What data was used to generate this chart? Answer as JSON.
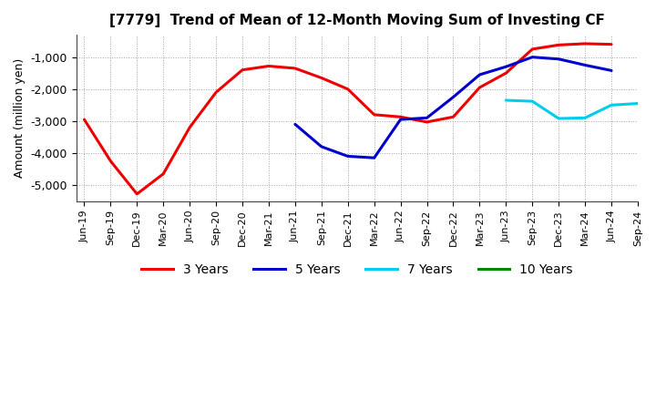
{
  "title": "[7779]  Trend of Mean of 12-Month Moving Sum of Investing CF",
  "ylabel": "Amount (million yen)",
  "background_color": "#ffffff",
  "grid_color": "#999999",
  "ylim": [
    -5500,
    -300
  ],
  "yticks": [
    -5000,
    -4000,
    -3000,
    -2000,
    -1000
  ],
  "x_labels": [
    "Jun-19",
    "Sep-19",
    "Dec-19",
    "Mar-20",
    "Jun-20",
    "Sep-20",
    "Dec-20",
    "Mar-21",
    "Jun-21",
    "Sep-21",
    "Dec-21",
    "Mar-22",
    "Jun-22",
    "Sep-22",
    "Dec-22",
    "Mar-23",
    "Jun-23",
    "Sep-23",
    "Dec-23",
    "Mar-24",
    "Jun-24",
    "Sep-24"
  ],
  "series_3yr": {
    "color": "#ee0000",
    "x": [
      0,
      1,
      2,
      3,
      4,
      5,
      6,
      7,
      8,
      9,
      10,
      11,
      12,
      13,
      14,
      15,
      16,
      17,
      18,
      19,
      20
    ],
    "y": [
      -2950,
      -4250,
      -5280,
      -4650,
      -3200,
      -2100,
      -1400,
      -1280,
      -1350,
      -1650,
      -2000,
      -2800,
      -2870,
      -3030,
      -2870,
      -1950,
      -1500,
      -750,
      -620,
      -580,
      -600
    ]
  },
  "series_5yr": {
    "color": "#0000cc",
    "x": [
      8,
      9,
      10,
      11,
      12,
      13,
      14,
      15,
      16,
      17,
      18,
      19,
      20
    ],
    "y": [
      -3100,
      -3800,
      -4100,
      -4150,
      -2950,
      -2900,
      -2250,
      -1550,
      -1300,
      -1000,
      -1060,
      -1250,
      -1420
    ]
  },
  "series_7yr": {
    "color": "#00ccee",
    "x": [
      16,
      17,
      18,
      19,
      20,
      21
    ],
    "y": [
      -2350,
      -2380,
      -2920,
      -2900,
      -2500,
      -2450
    ]
  },
  "series_10yr": {
    "color": "#008800",
    "x": [],
    "y": []
  },
  "legend_labels": [
    "3 Years",
    "5 Years",
    "7 Years",
    "10 Years"
  ],
  "legend_colors": [
    "#ee0000",
    "#0000cc",
    "#00ccee",
    "#008800"
  ]
}
